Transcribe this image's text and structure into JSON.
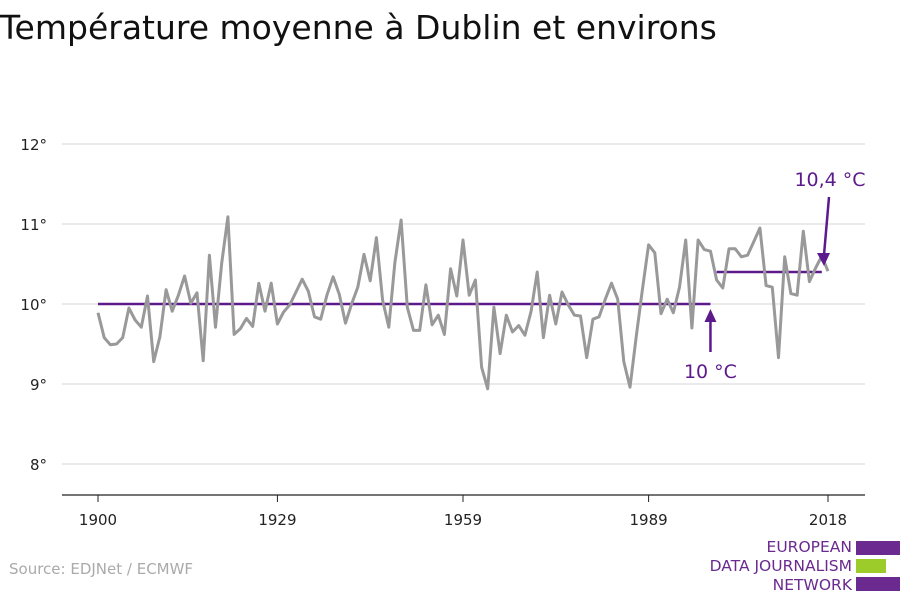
{
  "title": "Température moyenne à Dublin et environs",
  "source": "Source: EDJNet / ECMWF",
  "logo": {
    "line1": "EUROPEAN",
    "line2": "DATA JOURNALISM",
    "line3": "NETWORK"
  },
  "colors": {
    "line": "#999999",
    "mean": "#5c1a8c",
    "grid": "#dddddd",
    "logo_green": "#9ccc2a"
  },
  "chart_data": {
    "type": "line",
    "title": "Température moyenne à Dublin et environs",
    "xlabel": "",
    "ylabel": "",
    "ylim": [
      7.6,
      12.0
    ],
    "xlim": [
      1900,
      2018
    ],
    "y_ticks": [
      {
        "v": 8,
        "label": "8°"
      },
      {
        "v": 9,
        "label": "9°"
      },
      {
        "v": 10,
        "label": "10°"
      },
      {
        "v": 11,
        "label": "11°"
      },
      {
        "v": 12,
        "label": "12°"
      }
    ],
    "x_ticks": [
      {
        "v": 1900,
        "label": "1900"
      },
      {
        "v": 1929,
        "label": "1929"
      },
      {
        "v": 1959,
        "label": "1959"
      },
      {
        "v": 1989,
        "label": "1989"
      },
      {
        "v": 2018,
        "label": "2018"
      }
    ],
    "grid": true,
    "x_start": 1900,
    "values": [
      9.89,
      9.58,
      9.49,
      9.5,
      9.58,
      9.95,
      9.8,
      9.71,
      10.1,
      9.28,
      9.59,
      10.18,
      9.91,
      10.11,
      10.35,
      10.01,
      10.14,
      9.29,
      10.61,
      9.71,
      10.51,
      11.09,
      9.62,
      9.69,
      9.82,
      9.72,
      10.26,
      9.91,
      10.26,
      9.75,
      9.9,
      9.99,
      10.15,
      10.31,
      10.16,
      9.84,
      9.81,
      10.11,
      10.34,
      10.12,
      9.76,
      10.0,
      10.21,
      10.62,
      10.29,
      10.83,
      10.05,
      9.71,
      10.52,
      11.05,
      9.96,
      9.67,
      9.67,
      10.24,
      9.74,
      9.86,
      9.62,
      10.44,
      10.1,
      10.8,
      10.11,
      10.3,
      9.21,
      8.94,
      9.96,
      9.38,
      9.86,
      9.65,
      9.73,
      9.61,
      9.91,
      10.4,
      9.58,
      10.11,
      9.75,
      10.15,
      9.99,
      9.86,
      9.85,
      9.33,
      9.81,
      9.84,
      10.06,
      10.26,
      10.06,
      9.28,
      8.96,
      9.59,
      10.18,
      10.74,
      10.64,
      9.88,
      10.06,
      9.89,
      10.21,
      10.8,
      9.7,
      10.8,
      10.68,
      10.66,
      10.3,
      10.2,
      10.69,
      10.69,
      10.59,
      10.61,
      10.78,
      10.95,
      10.23,
      10.21,
      9.33,
      10.59,
      10.13,
      10.11,
      10.91,
      10.28,
      10.45,
      10.6,
      10.41
    ],
    "means": [
      {
        "from": 1900,
        "to": 1999,
        "value": 10.0,
        "label": "10 °C"
      },
      {
        "from": 2000,
        "to": 2017,
        "value": 10.4,
        "label": "10,4 °C"
      }
    ]
  }
}
